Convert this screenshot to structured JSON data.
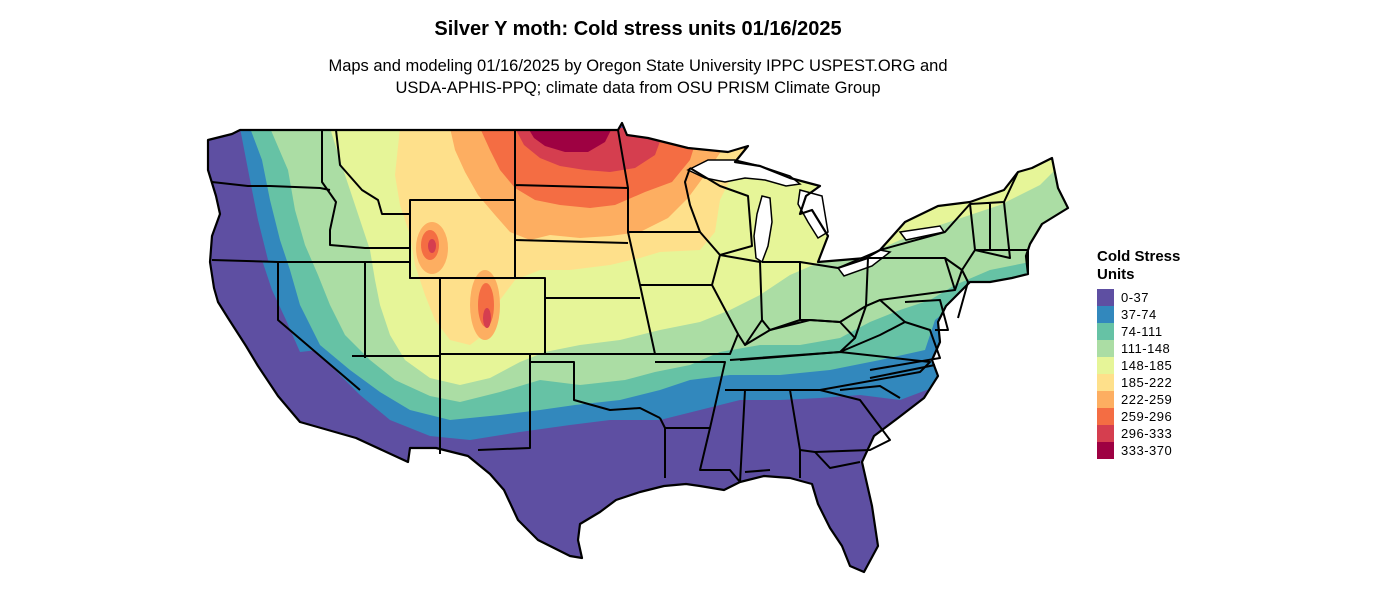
{
  "title": "Silver Y moth: Cold stress units 01/16/2025",
  "subtitle_line1": "Maps and modeling 01/16/2025 by Oregon State University IPPC USPEST.ORG and",
  "subtitle_line2": "USDA-APHIS-PPQ; climate data from OSU PRISM Climate Group",
  "legend": {
    "title_line1": "Cold Stress",
    "title_line2": "Units",
    "items": [
      {
        "label": "0-37",
        "color": "#5e4fa2"
      },
      {
        "label": "37-74",
        "color": "#3288bd"
      },
      {
        "label": "74-111",
        "color": "#66c2a5"
      },
      {
        "label": "111-148",
        "color": "#abdda4"
      },
      {
        "label": "148-185",
        "color": "#e6f598"
      },
      {
        "label": "185-222",
        "color": "#fee08b"
      },
      {
        "label": "222-259",
        "color": "#fdae61"
      },
      {
        "label": "259-296",
        "color": "#f46d43"
      },
      {
        "label": "296-333",
        "color": "#d53e4f"
      },
      {
        "label": "333-370",
        "color": "#9e0142"
      }
    ]
  }
}
